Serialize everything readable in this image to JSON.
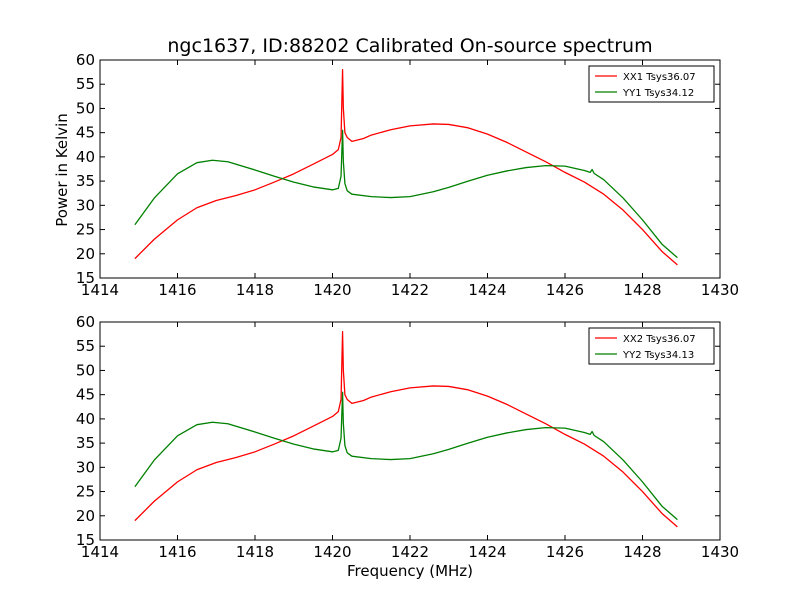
{
  "figure": {
    "title": "ngc1637, ID:88202 Calibrated On-source spectrum",
    "xlabel": "Frequency (MHz)",
    "ylabel": "Power in Kelvin"
  },
  "colors": {
    "red": "#ff0000",
    "green": "#008000"
  },
  "chart_data": [
    {
      "type": "line",
      "title": "ngc1637, ID:88202 Calibrated On-source spectrum",
      "xlabel": "",
      "ylabel": "Power in Kelvin",
      "xlim": [
        1414,
        1430
      ],
      "ylim": [
        15,
        60
      ],
      "xticks": [
        "1414",
        "1416",
        "1418",
        "1420",
        "1422",
        "1424",
        "1426",
        "1428",
        "1430"
      ],
      "yticks": [
        "15",
        "20",
        "25",
        "30",
        "35",
        "40",
        "45",
        "50",
        "55",
        "60"
      ],
      "grid": false,
      "legend": "top-right",
      "series": [
        {
          "name": "XX1 Tsys36.07",
          "color": "#ff0000",
          "x": [
            1414.9,
            1415.4,
            1416.0,
            1416.5,
            1417.0,
            1417.5,
            1418.0,
            1418.5,
            1419.0,
            1419.5,
            1420.0,
            1420.15,
            1420.22,
            1420.26,
            1420.28,
            1420.32,
            1420.38,
            1420.5,
            1420.8,
            1421.0,
            1421.5,
            1422.0,
            1422.6,
            1423.0,
            1423.5,
            1424.0,
            1424.5,
            1425.0,
            1425.5,
            1426.0,
            1426.5,
            1427.0,
            1427.5,
            1428.0,
            1428.5,
            1428.9
          ],
          "y": [
            19.0,
            23.0,
            27.0,
            29.5,
            31.0,
            32.0,
            33.2,
            34.8,
            36.5,
            38.5,
            40.5,
            41.5,
            44.0,
            58.0,
            50.0,
            45.0,
            44.0,
            43.2,
            43.8,
            44.5,
            45.6,
            46.4,
            46.8,
            46.7,
            46.0,
            44.7,
            43.0,
            41.0,
            39.0,
            36.8,
            34.8,
            32.3,
            29.0,
            25.0,
            20.5,
            17.7
          ]
        },
        {
          "name": "YY1 Tsys34.12",
          "color": "#008000",
          "x": [
            1414.9,
            1415.4,
            1416.0,
            1416.5,
            1416.9,
            1417.3,
            1418.0,
            1418.5,
            1419.0,
            1419.5,
            1420.0,
            1420.15,
            1420.22,
            1420.26,
            1420.28,
            1420.32,
            1420.38,
            1420.5,
            1421.0,
            1421.5,
            1422.0,
            1422.6,
            1423.0,
            1423.5,
            1424.0,
            1424.5,
            1425.0,
            1425.5,
            1426.0,
            1426.5,
            1426.65,
            1426.7,
            1426.75,
            1427.0,
            1427.5,
            1428.0,
            1428.5,
            1428.9
          ],
          "y": [
            26.0,
            31.5,
            36.5,
            38.8,
            39.3,
            39.0,
            37.3,
            36.0,
            34.8,
            33.8,
            33.2,
            33.5,
            36.0,
            45.5,
            39.0,
            34.5,
            33.0,
            32.3,
            31.8,
            31.6,
            31.8,
            32.8,
            33.7,
            35.0,
            36.2,
            37.1,
            37.8,
            38.2,
            38.1,
            37.2,
            36.8,
            37.4,
            36.6,
            35.3,
            31.5,
            27.0,
            22.0,
            19.2
          ]
        }
      ]
    },
    {
      "type": "line",
      "title": "",
      "xlabel": "Frequency (MHz)",
      "ylabel": "",
      "xlim": [
        1414,
        1430
      ],
      "ylim": [
        15,
        60
      ],
      "xticks": [
        "1414",
        "1416",
        "1418",
        "1420",
        "1422",
        "1424",
        "1426",
        "1428",
        "1430"
      ],
      "yticks": [
        "15",
        "20",
        "25",
        "30",
        "35",
        "40",
        "45",
        "50",
        "55",
        "60"
      ],
      "grid": false,
      "legend": "top-right",
      "series": [
        {
          "name": "XX2 Tsys36.07",
          "color": "#ff0000",
          "x": [
            1414.9,
            1415.4,
            1416.0,
            1416.5,
            1417.0,
            1417.5,
            1418.0,
            1418.5,
            1419.0,
            1419.5,
            1420.0,
            1420.15,
            1420.22,
            1420.26,
            1420.28,
            1420.32,
            1420.38,
            1420.5,
            1420.8,
            1421.0,
            1421.5,
            1422.0,
            1422.6,
            1423.0,
            1423.5,
            1424.0,
            1424.5,
            1425.0,
            1425.5,
            1426.0,
            1426.5,
            1427.0,
            1427.5,
            1428.0,
            1428.5,
            1428.9
          ],
          "y": [
            19.0,
            23.0,
            27.0,
            29.5,
            31.0,
            32.0,
            33.2,
            34.8,
            36.5,
            38.5,
            40.5,
            41.5,
            44.0,
            58.0,
            50.0,
            45.0,
            44.0,
            43.2,
            43.8,
            44.5,
            45.6,
            46.4,
            46.8,
            46.7,
            46.0,
            44.7,
            43.0,
            41.0,
            39.0,
            36.8,
            34.8,
            32.3,
            29.0,
            25.0,
            20.5,
            17.7
          ]
        },
        {
          "name": "YY2 Tsys34.13",
          "color": "#008000",
          "x": [
            1414.9,
            1415.4,
            1416.0,
            1416.5,
            1416.9,
            1417.3,
            1418.0,
            1418.5,
            1419.0,
            1419.5,
            1420.0,
            1420.15,
            1420.22,
            1420.26,
            1420.28,
            1420.32,
            1420.38,
            1420.5,
            1421.0,
            1421.5,
            1422.0,
            1422.6,
            1423.0,
            1423.5,
            1424.0,
            1424.5,
            1425.0,
            1425.5,
            1426.0,
            1426.5,
            1426.65,
            1426.7,
            1426.75,
            1427.0,
            1427.5,
            1428.0,
            1428.5,
            1428.9
          ],
          "y": [
            26.0,
            31.5,
            36.5,
            38.8,
            39.3,
            39.0,
            37.3,
            36.0,
            34.8,
            33.8,
            33.2,
            33.5,
            36.0,
            45.5,
            39.0,
            34.5,
            33.0,
            32.3,
            31.8,
            31.6,
            31.8,
            32.8,
            33.7,
            35.0,
            36.2,
            37.1,
            37.8,
            38.2,
            38.1,
            37.2,
            36.8,
            37.4,
            36.6,
            35.3,
            31.5,
            27.0,
            22.0,
            19.2
          ]
        }
      ]
    }
  ]
}
